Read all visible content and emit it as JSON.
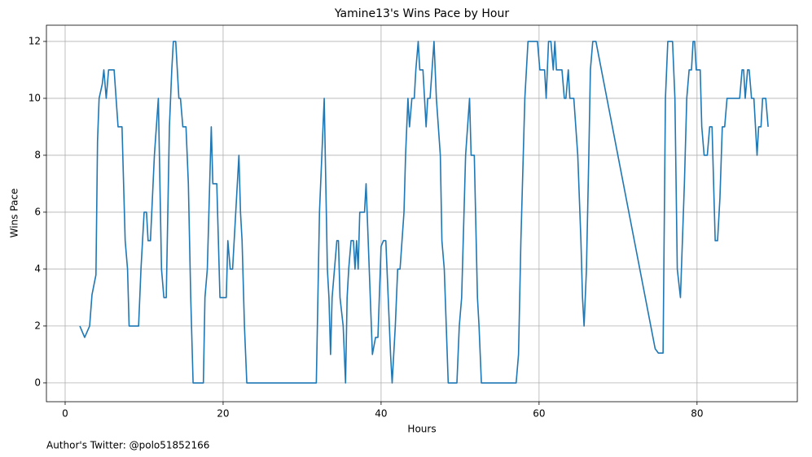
{
  "chart_data": {
    "type": "line",
    "title": "Yamine13's Wins Pace by Hour",
    "xlabel": "Hours",
    "ylabel": "Wins Pace",
    "annotation": "Author's Twitter: @polo51852166",
    "color": "#1f77b4",
    "grid": true,
    "xlim": [
      -2.37,
      92.7
    ],
    "ylim": [
      -0.66,
      12.57
    ],
    "xticks": [
      0,
      20,
      40,
      60,
      80
    ],
    "yticks": [
      0,
      2,
      4,
      6,
      8,
      10,
      12
    ],
    "x": [
      1.86,
      2.47,
      3.1,
      3.4,
      3.9,
      4.1,
      4.3,
      4.7,
      4.9,
      5.2,
      5.5,
      6.2,
      6.7,
      7.2,
      7.6,
      7.9,
      8.1,
      9.3,
      9.6,
      10.0,
      10.3,
      10.5,
      10.8,
      11.3,
      11.8,
      12.2,
      12.5,
      12.8,
      13.2,
      13.5,
      13.7,
      14.0,
      14.4,
      14.6,
      14.9,
      15.3,
      15.6,
      15.9,
      16.2,
      17.5,
      17.7,
      18.0,
      18.2,
      18.5,
      18.7,
      19.2,
      19.6,
      20.4,
      20.6,
      20.9,
      21.2,
      21.6,
      22.0,
      22.2,
      22.4,
      22.7,
      23.0,
      31.8,
      32.2,
      32.8,
      33.2,
      33.4,
      33.6,
      33.8,
      34.1,
      34.4,
      34.6,
      34.8,
      35.2,
      35.5,
      35.7,
      35.9,
      36.2,
      36.5,
      36.7,
      36.9,
      37.1,
      37.3,
      37.9,
      38.1,
      38.5,
      38.9,
      39.3,
      39.6,
      40.0,
      40.3,
      40.6,
      40.9,
      41.2,
      41.4,
      41.8,
      42.1,
      42.4,
      42.9,
      43.1,
      43.4,
      43.6,
      43.9,
      44.2,
      44.4,
      44.7,
      44.9,
      45.3,
      45.7,
      45.9,
      46.2,
      46.7,
      47.0,
      47.5,
      47.7,
      48.0,
      48.5,
      49.6,
      49.9,
      50.2,
      50.4,
      50.7,
      51.2,
      51.4,
      51.8,
      52.2,
      52.4,
      52.7,
      57.1,
      57.4,
      57.7,
      58.2,
      58.6,
      59.8,
      60.1,
      60.7,
      60.9,
      61.2,
      61.5,
      61.8,
      62.0,
      62.2,
      62.9,
      63.2,
      63.4,
      63.7,
      63.9,
      64.4,
      64.9,
      65.3,
      65.5,
      65.7,
      66.0,
      66.3,
      66.5,
      66.8,
      67.2,
      74.7,
      75.1,
      75.7,
      76.0,
      76.3,
      76.9,
      77.2,
      77.5,
      77.9,
      78.4,
      78.7,
      79.0,
      79.3,
      79.5,
      79.7,
      79.9,
      80.4,
      80.6,
      80.9,
      81.3,
      81.6,
      81.9,
      82.3,
      82.6,
      82.9,
      83.2,
      83.5,
      83.8,
      85.4,
      85.7,
      85.9,
      86.1,
      86.4,
      86.6,
      86.9,
      87.2,
      87.4,
      87.6,
      87.8,
      88.1,
      88.3,
      88.7,
      89.0
    ],
    "values": [
      2,
      1.6,
      2,
      3.1,
      3.8,
      8.5,
      10,
      10.5,
      11,
      10,
      11,
      11,
      9,
      9,
      5,
      4,
      2,
      2,
      4,
      6,
      6,
      5,
      5,
      8,
      10,
      4,
      3,
      3,
      9,
      11,
      12,
      12,
      10,
      10,
      9,
      9,
      7,
      3,
      0,
      0,
      3,
      4,
      6,
      9,
      7,
      7,
      3,
      3,
      5,
      4,
      4,
      6,
      8,
      6,
      5,
      2,
      0,
      0,
      6,
      10,
      4,
      3,
      1,
      3,
      4,
      5,
      5,
      3,
      2,
      0,
      3,
      4,
      5,
      5,
      4,
      5,
      4,
      6,
      6,
      7,
      4,
      1,
      1.6,
      1.6,
      4.8,
      5,
      5,
      3,
      1,
      0,
      2,
      4,
      4,
      6,
      8,
      10,
      9,
      10,
      10,
      11,
      12,
      11,
      11,
      9,
      10,
      10,
      12,
      10,
      8,
      5,
      4,
      0,
      0,
      2,
      3,
      5,
      8,
      10,
      8,
      8,
      3,
      2,
      0,
      0,
      1,
      5,
      10,
      12,
      12,
      11,
      11,
      10,
      12,
      12,
      11,
      12,
      11,
      11,
      10,
      10,
      11,
      10,
      10,
      8,
      5,
      3,
      2,
      4,
      8,
      11,
      12,
      12,
      1.2,
      1.05,
      1.05,
      10,
      12,
      12,
      10,
      4,
      3,
      7,
      10,
      11,
      11,
      12,
      12,
      11,
      11,
      9,
      8,
      8,
      9,
      9,
      5,
      5,
      6.5,
      9,
      9,
      10,
      10,
      11,
      11,
      10,
      11,
      11,
      10,
      10,
      9,
      8,
      9,
      9,
      10,
      10,
      9
    ]
  }
}
